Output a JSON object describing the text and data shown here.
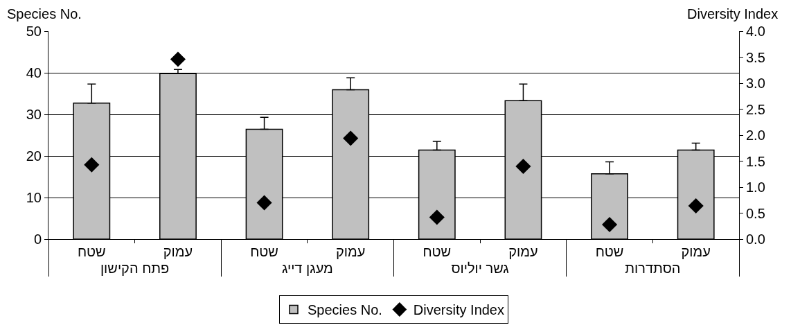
{
  "chart_data": {
    "type": "bar",
    "categories": [
      "שטח",
      "עמוק",
      "שטח",
      "עמוק",
      "שטח",
      "עמוק",
      "שטח",
      "עמוק"
    ],
    "annotations": [
      "פתח הקישון",
      "מעגן דייג",
      "גשר יוליוס",
      "הסתדרות"
    ],
    "ylabel": "Species No.",
    "y2label": "Diversity Index",
    "series": [
      {
        "name": "Species No.",
        "color": "#c0c0c0",
        "values": [
          32.7,
          39.8,
          26.4,
          35.9,
          21.4,
          33.3,
          15.7,
          21.4
        ],
        "errors": [
          4.6,
          1.0,
          2.9,
          2.9,
          2.1,
          4.0,
          2.9,
          1.7
        ]
      },
      {
        "name": "Diversity Index",
        "type": "scatter",
        "axis": "y2",
        "color": "#000000",
        "marker": "diamond",
        "values": [
          1.43,
          3.46,
          0.7,
          1.94,
          0.42,
          1.4,
          0.28,
          0.64
        ]
      }
    ],
    "ylim": [
      0,
      50
    ],
    "yticks": [
      0,
      10,
      20,
      30,
      40,
      50
    ],
    "y2lim": [
      0,
      4
    ],
    "y2ticks": [
      {
        "value": 0,
        "label": "0.0"
      },
      {
        "value": 0.5,
        "label": "0.5"
      },
      {
        "value": 1,
        "label": "1.0"
      },
      {
        "value": 1.5,
        "label": "1.5"
      },
      {
        "value": 2,
        "label": "2.0"
      },
      {
        "value": 2.5,
        "label": "2.5"
      },
      {
        "value": 3,
        "label": "3.0"
      },
      {
        "value": 3.5,
        "label": "3.5"
      },
      {
        "value": 4,
        "label": "4.0"
      }
    ],
    "grid": "y",
    "legend": "bottom"
  }
}
